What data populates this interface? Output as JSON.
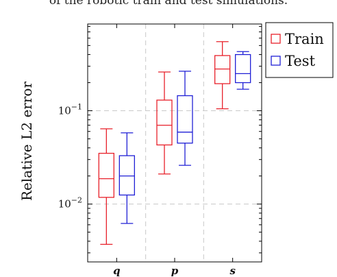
{
  "caption": "of the robotic train and test simulations.",
  "chart_data": {
    "type": "box",
    "ylabel": "Relative L2 error",
    "xlabel": "",
    "yscale": "log",
    "ylim": [
      0.0024,
      0.85
    ],
    "grid": true,
    "legend_position": "top-right-outside",
    "yticks": [
      {
        "value": 0.1,
        "base": "10",
        "exp": "−1"
      },
      {
        "value": 0.01,
        "base": "10",
        "exp": "−2"
      }
    ],
    "categories": [
      "q",
      "p",
      "s"
    ],
    "series": [
      {
        "name": "Train",
        "color": "#e8202a",
        "boxes": [
          {
            "whisker_low": 0.0037,
            "q1": 0.0118,
            "median": 0.0187,
            "q3": 0.035,
            "whisker_high": 0.064
          },
          {
            "whisker_low": 0.021,
            "q1": 0.043,
            "median": 0.07,
            "q3": 0.13,
            "whisker_high": 0.26
          },
          {
            "whisker_low": 0.105,
            "q1": 0.195,
            "median": 0.28,
            "q3": 0.39,
            "whisker_high": 0.55
          }
        ]
      },
      {
        "name": "Test",
        "color": "#1f1fd6",
        "boxes": [
          {
            "whisker_low": 0.0062,
            "q1": 0.0125,
            "median": 0.02,
            "q3": 0.033,
            "whisker_high": 0.058
          },
          {
            "whisker_low": 0.026,
            "q1": 0.045,
            "median": 0.059,
            "q3": 0.145,
            "whisker_high": 0.265
          },
          {
            "whisker_low": 0.17,
            "q1": 0.2,
            "median": 0.25,
            "q3": 0.4,
            "whisker_high": 0.43
          }
        ]
      }
    ]
  }
}
